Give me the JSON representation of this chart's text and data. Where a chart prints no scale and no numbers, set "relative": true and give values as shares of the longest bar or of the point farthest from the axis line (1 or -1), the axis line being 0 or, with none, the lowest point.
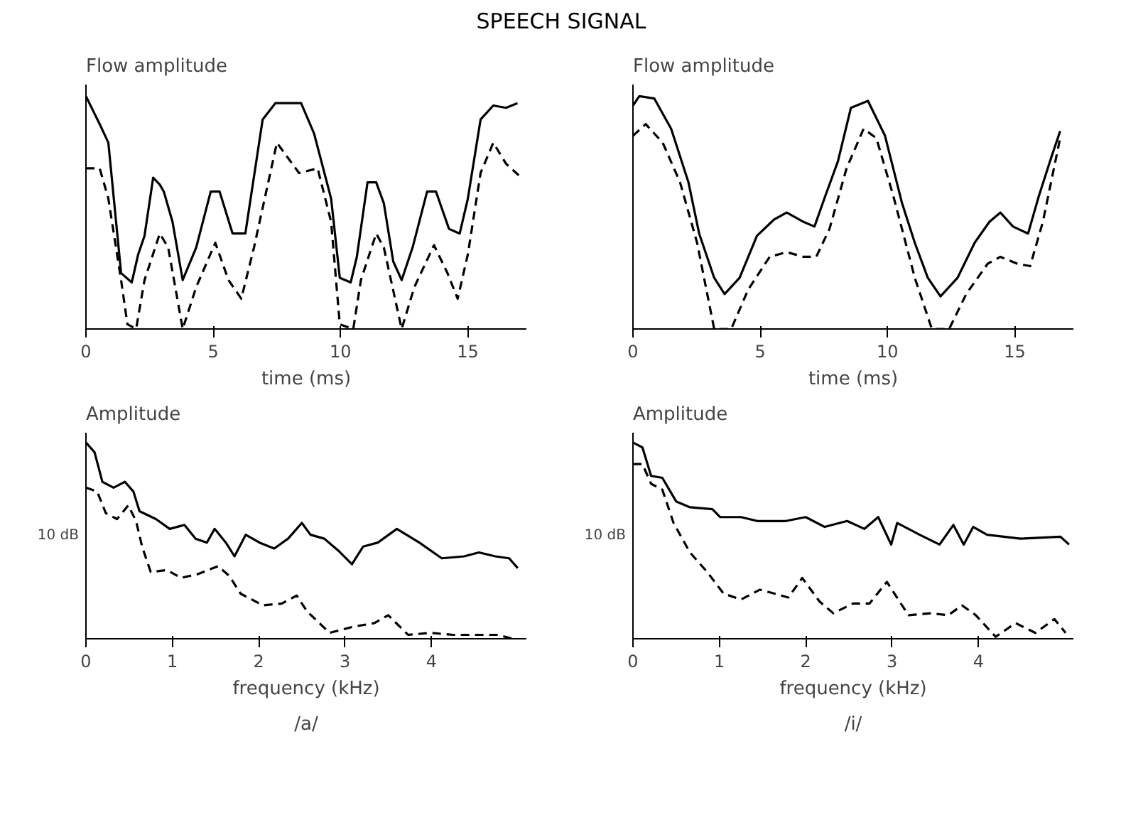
{
  "chart_data": [
    {
      "type": "line",
      "title": "SPEECH SIGNAL",
      "ylabel": "Flow amplitude",
      "xlabel": "time (ms)",
      "relative": true,
      "xlim": [
        0,
        17.3
      ],
      "xticks": [
        0,
        5,
        10,
        15
      ],
      "grid": false,
      "marker": "none",
      "series": [
        {
          "color": "#000000",
          "line_style": "solid",
          "x": [
            0,
            0.54,
            0.88,
            1.38,
            1.8,
            2.05,
            2.3,
            2.64,
            2.9,
            3.06,
            3.4,
            3.8,
            4.33,
            4.9,
            5.25,
            5.76,
            6.26,
            6.94,
            7.44,
            8.45,
            8.96,
            9.63,
            9.97,
            10.4,
            10.64,
            11.06,
            11.4,
            11.7,
            12.07,
            12.4,
            12.83,
            13.4,
            13.75,
            14.26,
            14.68,
            15.0,
            15.5,
            16.0,
            16.5,
            16.95
          ],
          "values": [
            1.0,
            0.88,
            0.8,
            0.24,
            0.2,
            0.32,
            0.4,
            0.65,
            0.62,
            0.59,
            0.46,
            0.21,
            0.35,
            0.59,
            0.59,
            0.41,
            0.41,
            0.9,
            0.97,
            0.97,
            0.84,
            0.56,
            0.22,
            0.2,
            0.31,
            0.63,
            0.63,
            0.54,
            0.29,
            0.21,
            0.35,
            0.59,
            0.59,
            0.43,
            0.41,
            0.56,
            0.9,
            0.96,
            0.95,
            0.97
          ]
        },
        {
          "color": "#000000",
          "line_style": "dashed",
          "x": [
            0,
            0.54,
            0.88,
            1.38,
            1.63,
            1.97,
            2.3,
            2.9,
            3.23,
            3.8,
            4.33,
            5.08,
            5.6,
            6.1,
            6.6,
            7.5,
            8.37,
            9.1,
            9.63,
            9.97,
            10.5,
            10.8,
            11.4,
            11.7,
            12.4,
            12.9,
            13.67,
            14.2,
            14.6,
            15.0,
            15.5,
            16.0,
            16.5,
            17.0
          ],
          "values": [
            0.69,
            0.69,
            0.56,
            0.21,
            0.02,
            0,
            0.21,
            0.41,
            0.35,
            0,
            0.18,
            0.37,
            0.21,
            0.13,
            0.35,
            0.8,
            0.67,
            0.69,
            0.46,
            0.02,
            0,
            0.21,
            0.41,
            0.35,
            0,
            0.18,
            0.36,
            0.24,
            0.13,
            0.32,
            0.67,
            0.8,
            0.71,
            0.66
          ]
        }
      ]
    },
    {
      "type": "line",
      "ylabel": "Flow amplitude",
      "xlabel": "time (ms)",
      "relative": true,
      "xlim": [
        0,
        17.3
      ],
      "xticks": [
        0,
        5,
        10,
        15
      ],
      "grid": false,
      "marker": "none",
      "series": [
        {
          "color": "#000000",
          "line_style": "solid",
          "x": [
            0,
            0.25,
            0.84,
            1.5,
            2.18,
            2.6,
            3.19,
            3.6,
            4.19,
            4.87,
            5.54,
            6.04,
            6.7,
            7.13,
            7.55,
            8.05,
            8.56,
            9.23,
            9.9,
            10.57,
            11.07,
            11.58,
            12.08,
            12.75,
            13.42,
            14.0,
            14.43,
            14.93,
            15.52,
            15.94,
            16.44,
            16.78
          ],
          "values": [
            0.96,
            1.0,
            0.99,
            0.86,
            0.63,
            0.41,
            0.22,
            0.15,
            0.22,
            0.4,
            0.47,
            0.5,
            0.46,
            0.44,
            0.57,
            0.72,
            0.95,
            0.98,
            0.83,
            0.54,
            0.37,
            0.22,
            0.14,
            0.22,
            0.37,
            0.46,
            0.5,
            0.44,
            0.41,
            0.57,
            0.74,
            0.85
          ]
        },
        {
          "color": "#000000",
          "line_style": "dashed",
          "x": [
            0,
            0.5,
            1.17,
            1.85,
            2.52,
            3.19,
            3.86,
            4.53,
            5.37,
            6.04,
            6.7,
            7.2,
            7.72,
            8.39,
            9.06,
            9.56,
            10.23,
            11.07,
            11.74,
            12.42,
            13.09,
            13.93,
            14.43,
            15.1,
            15.6,
            16.1,
            16.78
          ],
          "values": [
            0.83,
            0.88,
            0.8,
            0.63,
            0.37,
            0,
            0,
            0.17,
            0.31,
            0.33,
            0.31,
            0.31,
            0.43,
            0.69,
            0.86,
            0.82,
            0.57,
            0.22,
            0,
            0,
            0.15,
            0.28,
            0.31,
            0.28,
            0.27,
            0.46,
            0.82
          ]
        }
      ]
    },
    {
      "type": "line",
      "ylabel": "Amplitude",
      "xlabel": "frequency (kHz)",
      "annotations": [
        "10 dB",
        "/a/"
      ],
      "relative": true,
      "xlim": [
        0,
        5.1
      ],
      "xticks": [
        0,
        1,
        2,
        3,
        4
      ],
      "grid": false,
      "marker": "none",
      "series": [
        {
          "color": "#000000",
          "line_style": "solid",
          "x": [
            0,
            0.1,
            0.19,
            0.32,
            0.45,
            0.55,
            0.62,
            0.81,
            0.97,
            1.14,
            1.27,
            1.4,
            1.49,
            1.62,
            1.72,
            1.85,
            2.01,
            2.18,
            2.34,
            2.5,
            2.6,
            2.76,
            2.92,
            3.08,
            3.21,
            3.38,
            3.6,
            3.86,
            4.12,
            4.38,
            4.55,
            4.74,
            4.9,
            5.0
          ],
          "values": [
            1.0,
            0.95,
            0.8,
            0.77,
            0.8,
            0.75,
            0.65,
            0.61,
            0.56,
            0.58,
            0.51,
            0.49,
            0.56,
            0.49,
            0.42,
            0.53,
            0.49,
            0.46,
            0.51,
            0.59,
            0.53,
            0.51,
            0.45,
            0.38,
            0.47,
            0.49,
            0.56,
            0.49,
            0.41,
            0.42,
            0.44,
            0.42,
            0.41,
            0.36
          ]
        },
        {
          "color": "#000000",
          "line_style": "dashed",
          "x": [
            0,
            0.13,
            0.23,
            0.36,
            0.49,
            0.58,
            0.65,
            0.75,
            0.94,
            1.1,
            1.3,
            1.53,
            1.66,
            1.79,
            2.05,
            2.27,
            2.44,
            2.56,
            2.82,
            3.08,
            3.34,
            3.5,
            3.73,
            3.99,
            4.25,
            4.51,
            4.77,
            4.94
          ],
          "values": [
            0.77,
            0.75,
            0.64,
            0.61,
            0.68,
            0.6,
            0.47,
            0.34,
            0.35,
            0.31,
            0.33,
            0.37,
            0.32,
            0.23,
            0.17,
            0.18,
            0.22,
            0.14,
            0.03,
            0.06,
            0.08,
            0.12,
            0.02,
            0.03,
            0.02,
            0.02,
            0.02,
            0
          ]
        }
      ]
    },
    {
      "type": "line",
      "ylabel": "Amplitude",
      "xlabel": "frequency (kHz)",
      "annotations": [
        "10 dB",
        "/i/"
      ],
      "relative": true,
      "xlim": [
        0,
        5.1
      ],
      "xticks": [
        0,
        1,
        2,
        3,
        4
      ],
      "grid": false,
      "marker": "none",
      "series": [
        {
          "color": "#000000",
          "line_style": "solid",
          "x": [
            0,
            0.11,
            0.21,
            0.34,
            0.5,
            0.66,
            0.92,
            1.01,
            1.25,
            1.44,
            1.77,
            2.0,
            2.22,
            2.48,
            2.68,
            2.84,
            2.99,
            3.06,
            3.32,
            3.55,
            3.71,
            3.83,
            3.94,
            4.1,
            4.49,
            4.95,
            5.05
          ],
          "values": [
            1.0,
            0.975,
            0.83,
            0.82,
            0.7,
            0.67,
            0.66,
            0.62,
            0.62,
            0.6,
            0.6,
            0.62,
            0.57,
            0.6,
            0.56,
            0.62,
            0.48,
            0.59,
            0.53,
            0.48,
            0.58,
            0.48,
            0.57,
            0.53,
            0.51,
            0.52,
            0.48
          ]
        },
        {
          "color": "#000000",
          "line_style": "dashed",
          "x": [
            0,
            0.11,
            0.21,
            0.34,
            0.47,
            0.66,
            0.86,
            1.05,
            1.25,
            1.47,
            1.64,
            1.8,
            1.96,
            2.16,
            2.32,
            2.55,
            2.74,
            2.94,
            3.19,
            3.45,
            3.65,
            3.81,
            3.97,
            4.2,
            4.43,
            4.66,
            4.88,
            5.01
          ],
          "values": [
            0.89,
            0.89,
            0.79,
            0.76,
            0.59,
            0.44,
            0.34,
            0.23,
            0.2,
            0.25,
            0.23,
            0.21,
            0.31,
            0.19,
            0.13,
            0.18,
            0.18,
            0.29,
            0.12,
            0.13,
            0.12,
            0.17,
            0.12,
            0.01,
            0.08,
            0.03,
            0.1,
            0.03
          ]
        }
      ]
    }
  ]
}
